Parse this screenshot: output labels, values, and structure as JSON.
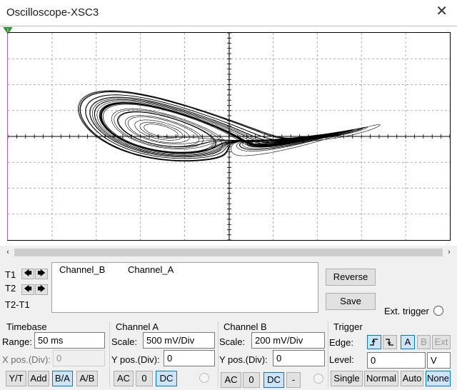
{
  "window": {
    "title": "Oscilloscope-XSC3"
  },
  "cursors": {
    "t1": "T1",
    "t2": "T2",
    "t2_t1": "T2-T1",
    "left_arrow": "🡄",
    "right_arrow": "🡆"
  },
  "readout": {
    "col1": "Channel_B",
    "col2": "Channel_A"
  },
  "actions": {
    "reverse": "Reverse",
    "save": "Save",
    "ext_trigger": "Ext. trigger"
  },
  "timebase": {
    "title": "Timebase",
    "range_label": "Range:",
    "range_value": "50 ms",
    "xpos_label": "X pos.(Div):",
    "xpos_value": "0",
    "modes": [
      "Y/T",
      "Add",
      "B/A",
      "A/B"
    ],
    "active_mode": "B/A"
  },
  "channel_a": {
    "title": "Channel A",
    "scale_label": "Scale:",
    "scale_value": "500 mV/Div",
    "ypos_label": "Y pos.(Div):",
    "ypos_value": "0",
    "coupling": [
      "AC",
      "0",
      "DC"
    ],
    "active": "DC"
  },
  "channel_b": {
    "title": "Channel B",
    "scale_label": "Scale:",
    "scale_value": "200 mV/Div",
    "ypos_label": "Y pos.(Div):",
    "ypos_value": "0",
    "coupling": [
      "AC",
      "0",
      "DC",
      "-"
    ],
    "active": "DC"
  },
  "trigger": {
    "title": "Trigger",
    "edge_label": "Edge:",
    "sources": [
      "A",
      "B",
      "Ext"
    ],
    "active_source": "A",
    "level_label": "Level:",
    "level_value": "0",
    "level_unit": "V",
    "modes": [
      "Single",
      "Normal",
      "Auto",
      "None"
    ],
    "active_mode": "None"
  },
  "icons": {
    "close": "close-icon",
    "rising_edge": "rising-edge-icon",
    "falling_edge": "falling-edge-icon",
    "cursor_marker": "cursor-marker-icon"
  },
  "colors": {
    "trace": "#000000",
    "grid": "#9a9a9a",
    "cursor": "#b15cc9",
    "active": "#cce4f7",
    "marker": "#2ca02c"
  }
}
